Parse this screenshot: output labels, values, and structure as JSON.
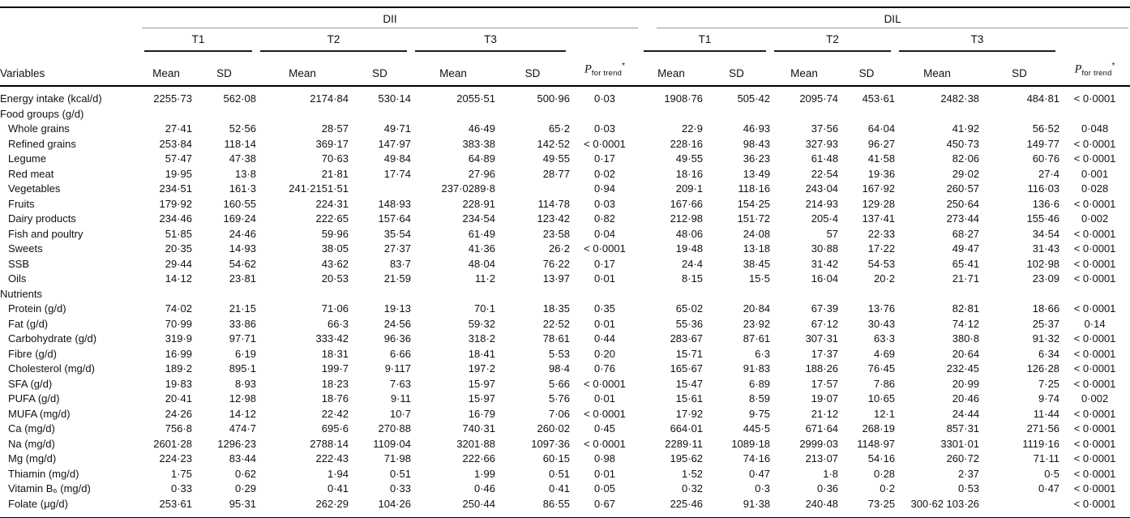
{
  "table": {
    "group_headers": [
      "DII",
      "DIL"
    ],
    "tertile_headers": [
      "T1",
      "T2",
      "T3"
    ],
    "variables_header": "Variables",
    "mean_header": "Mean",
    "sd_header": "SD",
    "p_header": {
      "main": "P",
      "sub": "for trend",
      "sup": "*"
    },
    "rows": [
      {
        "label": "Energy intake (kcal/d)",
        "section": false,
        "indent": false,
        "values": [
          "2255·73",
          "562·08",
          "2174·84",
          "530·14",
          "2055·51",
          "500·96",
          "0·03",
          "1908·76",
          "505·42",
          "2095·74",
          "453·61",
          "2482·38",
          "484·81",
          "< 0·0001"
        ]
      },
      {
        "label": "Food groups (g/d)",
        "section": true,
        "indent": false,
        "values": []
      },
      {
        "label": "Whole grains",
        "section": false,
        "indent": true,
        "values": [
          "27·41",
          "52·56",
          "28·57",
          "49·71",
          "46·49",
          "65·2",
          "0·03",
          "22·9",
          "46·93",
          "37·56",
          "64·04",
          "41·92",
          "56·52",
          "0·048"
        ]
      },
      {
        "label": "Refined grains",
        "section": false,
        "indent": true,
        "values": [
          "253·84",
          "118·14",
          "369·17",
          "147·97",
          "383·38",
          "142·52",
          "< 0·0001",
          "228·16",
          "98·43",
          "327·93",
          "96·27",
          "450·73",
          "149·77",
          "< 0·0001"
        ]
      },
      {
        "label": "Legume",
        "section": false,
        "indent": true,
        "values": [
          "57·47",
          "47·38",
          "70·63",
          "49·84",
          "64·89",
          "49·55",
          "0·17",
          "49·55",
          "36·23",
          "61·48",
          "41·58",
          "82·06",
          "60·76",
          "< 0·0001"
        ]
      },
      {
        "label": "Red meat",
        "section": false,
        "indent": true,
        "values": [
          "19·95",
          "13·8",
          "21·81",
          "17·74",
          "27·96",
          "28·77",
          "0·02",
          "18·16",
          "13·49",
          "22·54",
          "19·36",
          "29·02",
          "27·4",
          "0·001"
        ]
      },
      {
        "label": "Vegetables",
        "section": false,
        "indent": true,
        "values": [
          "234·51",
          "161·3",
          "241·2151·51",
          "",
          "237·0289·8",
          "",
          "0·94",
          "209·1",
          "118·16",
          "243·04",
          "167·92",
          "260·57",
          "116·03",
          "0·028"
        ]
      },
      {
        "label": "Fruits",
        "section": false,
        "indent": true,
        "values": [
          "179·92",
          "160·55",
          "224·31",
          "148·93",
          "228·91",
          "114·78",
          "0·03",
          "167·66",
          "154·25",
          "214·93",
          "129·28",
          "250·64",
          "136·6",
          "< 0·0001"
        ]
      },
      {
        "label": "Dairy products",
        "section": false,
        "indent": true,
        "values": [
          "234·46",
          "169·24",
          "222·65",
          "157·64",
          "234·54",
          "123·42",
          "0·82",
          "212·98",
          "151·72",
          "205·4",
          "137·41",
          "273·44",
          "155·46",
          "0·002"
        ]
      },
      {
        "label": "Fish and poultry",
        "section": false,
        "indent": true,
        "values": [
          "51·85",
          "24·46",
          "59·96",
          "35·54",
          "61·49",
          "23·58",
          "0·04",
          "48·06",
          "24·08",
          "57",
          "22·33",
          "68·27",
          "34·54",
          "< 0·0001"
        ]
      },
      {
        "label": "Sweets",
        "section": false,
        "indent": true,
        "values": [
          "20·35",
          "14·93",
          "38·05",
          "27·37",
          "41·36",
          "26·2",
          "< 0·0001",
          "19·48",
          "13·18",
          "30·88",
          "17·22",
          "49·47",
          "31·43",
          "< 0·0001"
        ]
      },
      {
        "label": "SSB",
        "section": false,
        "indent": true,
        "values": [
          "29·44",
          "54·62",
          "43·62",
          "83·7",
          "48·04",
          "76·22",
          "0·17",
          "24·4",
          "38·45",
          "31·42",
          "54·53",
          "65·41",
          "102·98",
          "< 0·0001"
        ]
      },
      {
        "label": "Oils",
        "section": false,
        "indent": true,
        "values": [
          "14·12",
          "23·81",
          "20·53",
          "21·59",
          "11·2",
          "13·97",
          "0·01",
          "8·15",
          "15·5",
          "16·04",
          "20·2",
          "21·71",
          "23·09",
          "< 0·0001"
        ]
      },
      {
        "label": "Nutrients",
        "section": true,
        "indent": false,
        "values": []
      },
      {
        "label": "Protein (g/d)",
        "section": false,
        "indent": true,
        "values": [
          "74·02",
          "21·15",
          "71·06",
          "19·13",
          "70·1",
          "18·35",
          "0·35",
          "65·02",
          "20·84",
          "67·39",
          "13·76",
          "82·81",
          "18·66",
          "< 0·0001"
        ]
      },
      {
        "label": "Fat (g/d)",
        "section": false,
        "indent": true,
        "values": [
          "70·99",
          "33·86",
          "66·3",
          "24·56",
          "59·32",
          "22·52",
          "0·01",
          "55·36",
          "23·92",
          "67·12",
          "30·43",
          "74·12",
          "25·37",
          "0·14"
        ]
      },
      {
        "label": "Carbohydrate (g/d)",
        "section": false,
        "indent": true,
        "values": [
          "319·9",
          "97·71",
          "333·42",
          "96·36",
          "318·2",
          "78·61",
          "0·44",
          "283·67",
          "87·61",
          "307·31",
          "63·3",
          "380·8",
          "91·32",
          "< 0·0001"
        ]
      },
      {
        "label": "Fibre (g/d)",
        "section": false,
        "indent": true,
        "values": [
          "16·99",
          "6·19",
          "18·31",
          "6·66",
          "18·41",
          "5·53",
          "0·20",
          "15·71",
          "6·3",
          "17·37",
          "4·69",
          "20·64",
          "6·34",
          "< 0·0001"
        ]
      },
      {
        "label": "Cholesterol (mg/d)",
        "section": false,
        "indent": true,
        "values": [
          "189·2",
          "895·1",
          "199·7",
          "9·117",
          "197·2",
          "98·4",
          "0·76",
          "165·67",
          "91·83",
          "188·26",
          "76·45",
          "232·45",
          "126·28",
          "< 0·0001"
        ]
      },
      {
        "label": "SFA (g/d)",
        "section": false,
        "indent": true,
        "values": [
          "19·83",
          "8·93",
          "18·23",
          "7·63",
          "15·97",
          "5·66",
          "< 0·0001",
          "15·47",
          "6·89",
          "17·57",
          "7·86",
          "20·99",
          "7·25",
          "< 0·0001"
        ]
      },
      {
        "label": "PUFA (g/d)",
        "section": false,
        "indent": true,
        "values": [
          "20·41",
          "12·98",
          "18·76",
          "9·11",
          "15·97",
          "5·76",
          "0·01",
          "15·61",
          "8·59",
          "19·07",
          "10·65",
          "20·46",
          "9·74",
          "0·002"
        ]
      },
      {
        "label": "MUFA (mg/d)",
        "section": false,
        "indent": true,
        "values": [
          "24·26",
          "14·12",
          "22·42",
          "10·7",
          "16·79",
          "7·06",
          "< 0·0001",
          "17·92",
          "9·75",
          "21·12",
          "12·1",
          "24·44",
          "11·44",
          "< 0·0001"
        ]
      },
      {
        "label": "Ca (mg/d)",
        "section": false,
        "indent": true,
        "values": [
          "756·8",
          "474·7",
          "695·6",
          "270·88",
          "740·31",
          "260·02",
          "0·45",
          "664·01",
          "445·5",
          "671·64",
          "268·19",
          "857·31",
          "271·56",
          "< 0·0001"
        ]
      },
      {
        "label": "Na (mg/d)",
        "section": false,
        "indent": true,
        "values": [
          "2601·28",
          "1296·23",
          "2788·14",
          "1109·04",
          "3201·88",
          "1097·36",
          "< 0·0001",
          "2289·11",
          "1089·18",
          "2999·03",
          "1148·97",
          "3301·01",
          "1119·16",
          "< 0·0001"
        ]
      },
      {
        "label": "Mg (mg/d)",
        "section": false,
        "indent": true,
        "values": [
          "224·23",
          "83·44",
          "222·43",
          "71·98",
          "222·66",
          "60·15",
          "0·98",
          "195·62",
          "74·16",
          "213·07",
          "54·16",
          "260·72",
          "71·11",
          "< 0·0001"
        ]
      },
      {
        "label": "Thiamin (mg/d)",
        "section": false,
        "indent": true,
        "values": [
          "1·75",
          "0·62",
          "1·94",
          "0·51",
          "1·99",
          "0·51",
          "0·01",
          "1·52",
          "0·47",
          "1·8",
          "0·28",
          "2·37",
          "0·5",
          "< 0·0001"
        ]
      },
      {
        "label": "Vitamin B₆ (mg/d)",
        "section": false,
        "indent": true,
        "values": [
          "0·33",
          "0·29",
          "0·41",
          "0·33",
          "0·46",
          "0·41",
          "0·05",
          "0·32",
          "0·3",
          "0·36",
          "0·2",
          "0·53",
          "0·47",
          "< 0·0001"
        ]
      },
      {
        "label": "Folate (μg/d)",
        "section": false,
        "indent": true,
        "values": [
          "253·61",
          "95·31",
          "262·29",
          "104·26",
          "250·44",
          "86·55",
          "0·67",
          "225·46",
          "91·38",
          "240·48",
          "73·25",
          "300·62 103·26",
          "",
          "< 0·0001"
        ]
      }
    ]
  }
}
